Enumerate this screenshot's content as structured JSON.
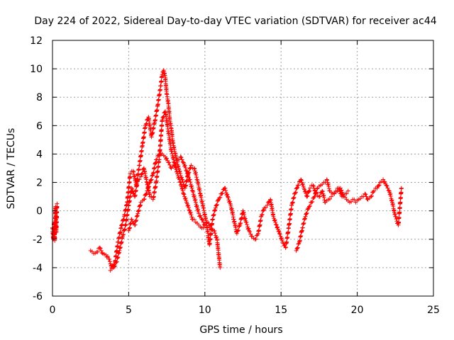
{
  "chart_data": {
    "type": "scatter",
    "title": "Day 224 of 2022, Sidereal Day-to-day VTEC variation (SDTVAR) for receiver ac44",
    "xlabel": "GPS time / hours",
    "ylabel": "SDTVAR / TECUs",
    "xlim": [
      0,
      25
    ],
    "ylim": [
      -6,
      12
    ],
    "xticks": [
      0,
      5,
      10,
      15,
      20,
      25
    ],
    "yticks": [
      -6,
      -4,
      -2,
      0,
      2,
      4,
      6,
      8,
      10,
      12
    ],
    "grid": true,
    "marker": "plus",
    "color": "#ff0000",
    "series": [
      {
        "name": "ac44",
        "segments": [
          {
            "x": [
              0.0,
              0.05,
              0.1,
              0.15,
              0.2,
              0.25,
              0.3
            ],
            "y": [
              -1.2,
              -2.0,
              -0.8,
              -2.1,
              0.3,
              -1.5,
              0.5
            ]
          },
          {
            "x": [
              2.5,
              2.7,
              2.9,
              3.1,
              3.3,
              3.5,
              3.7,
              3.9,
              4.1,
              4.3,
              4.5,
              4.7,
              4.9,
              5.1,
              5.3,
              5.5,
              5.7,
              5.9,
              6.1,
              6.3,
              6.5,
              6.7,
              6.9,
              7.1,
              7.2,
              7.3,
              7.4,
              7.5,
              7.6,
              7.7,
              7.8,
              7.9,
              8.1,
              8.3,
              8.5,
              8.7,
              8.9,
              9.1,
              9.3,
              9.5,
              9.7,
              9.9,
              10.1,
              10.3,
              10.5,
              10.7,
              10.9,
              11.1,
              11.3,
              11.5,
              11.7,
              11.9,
              12.1,
              12.3,
              12.5,
              12.7,
              12.9,
              13.1,
              13.3,
              13.5,
              13.7,
              13.9,
              14.1,
              14.3,
              14.5,
              14.7,
              14.9,
              15.1,
              15.3,
              15.5,
              15.7,
              15.9,
              16.1,
              16.3,
              16.5,
              16.7,
              16.9,
              17.1,
              17.3,
              17.5,
              17.7,
              17.9,
              18.1,
              18.3,
              18.5,
              18.7,
              18.9,
              19.1,
              19.3,
              19.5,
              19.7,
              19.9,
              20.1,
              20.3,
              20.5,
              20.7,
              20.9,
              21.1,
              21.3,
              21.5,
              21.7,
              21.9,
              22.1,
              22.3,
              22.5,
              22.7,
              22.9
            ],
            "y": [
              -2.8,
              -3.0,
              -2.9,
              -2.6,
              -3.0,
              -3.1,
              -3.4,
              -4.0,
              -3.6,
              -2.2,
              -1.2,
              -0.4,
              0.6,
              2.6,
              2.8,
              1.8,
              3.2,
              4.6,
              6.0,
              6.6,
              5.2,
              6.2,
              7.4,
              8.8,
              9.6,
              9.9,
              9.4,
              8.2,
              7.6,
              6.4,
              5.8,
              4.8,
              3.8,
              2.9,
              2.2,
              1.6,
              2.6,
              3.2,
              3.0,
              2.2,
              1.2,
              0.2,
              -0.8,
              -2.4,
              -0.6,
              0.2,
              0.8,
              1.2,
              1.6,
              1.0,
              0.4,
              -0.6,
              -1.6,
              -1.0,
              0.0,
              -0.8,
              -1.4,
              -1.8,
              -2.0,
              -1.6,
              -0.4,
              0.2,
              0.4,
              0.8,
              -0.4,
              -1.0,
              -1.6,
              -2.2,
              -2.6,
              -1.2,
              0.4,
              1.2,
              1.8,
              2.2,
              1.6,
              1.0,
              1.6,
              1.8,
              1.2,
              1.0,
              1.4,
              0.6,
              0.8,
              1.0,
              1.2,
              1.4,
              1.6,
              1.0,
              0.8,
              0.6,
              0.8,
              0.6,
              0.8,
              1.0,
              1.2,
              0.8,
              1.0,
              1.4,
              1.6,
              2.0,
              2.2,
              1.8,
              1.4,
              0.6,
              -0.4,
              -1.0,
              1.6
            ]
          },
          {
            "x": [
              3.8,
              4.0,
              4.2,
              4.4,
              4.6,
              4.8,
              5.0,
              5.2,
              5.4,
              5.6,
              5.8,
              6.0,
              6.2,
              6.4,
              6.6,
              6.8,
              7.0,
              7.2,
              7.4,
              7.6,
              7.8,
              8.0,
              8.2,
              8.4,
              8.6,
              8.8,
              9.0,
              9.2,
              9.4,
              9.6,
              9.8,
              10.0,
              10.2,
              10.4,
              10.6,
              10.8,
              11.0
            ],
            "y": [
              -4.2,
              -4.0,
              -3.6,
              -2.8,
              -1.8,
              -1.0,
              0.4,
              1.6,
              1.0,
              2.2,
              2.4,
              3.0,
              2.0,
              1.0,
              0.8,
              2.0,
              3.6,
              6.4,
              7.0,
              5.6,
              4.2,
              3.4,
              2.6,
              2.0,
              1.2,
              0.6,
              0.0,
              -0.6,
              -0.8,
              -1.0,
              -1.2,
              -1.0,
              -0.8,
              -1.2,
              -1.4,
              -2.0,
              -4.0
            ]
          },
          {
            "x": [
              5.0,
              5.2,
              5.4,
              5.6,
              5.8,
              6.0,
              6.2,
              6.4,
              6.6,
              6.8,
              7.0,
              7.2,
              7.4,
              7.6,
              7.8,
              8.0,
              8.2,
              8.4,
              8.6,
              8.8,
              9.0,
              9.2,
              9.4,
              9.6,
              9.8,
              10.0
            ],
            "y": [
              -1.4,
              -0.6,
              -1.0,
              -0.2,
              0.6,
              0.8,
              1.4,
              2.0,
              2.6,
              3.6,
              4.0,
              4.0,
              3.8,
              3.4,
              3.0,
              3.2,
              3.6,
              3.8,
              3.4,
              2.8,
              2.2,
              1.4,
              0.6,
              -0.2,
              -0.6,
              -1.0
            ]
          },
          {
            "x": [
              16.0,
              16.2,
              16.4,
              16.6,
              16.8,
              17.0,
              17.2,
              17.4,
              17.6,
              17.8,
              18.0,
              18.2,
              18.4,
              18.6,
              18.8,
              19.0,
              19.2,
              19.4
            ],
            "y": [
              -2.8,
              -2.2,
              -1.2,
              -0.4,
              0.2,
              0.6,
              1.0,
              1.6,
              1.8,
              2.0,
              2.2,
              1.4,
              1.2,
              1.4,
              1.6,
              1.0,
              1.2,
              1.4
            ]
          }
        ]
      }
    ]
  }
}
